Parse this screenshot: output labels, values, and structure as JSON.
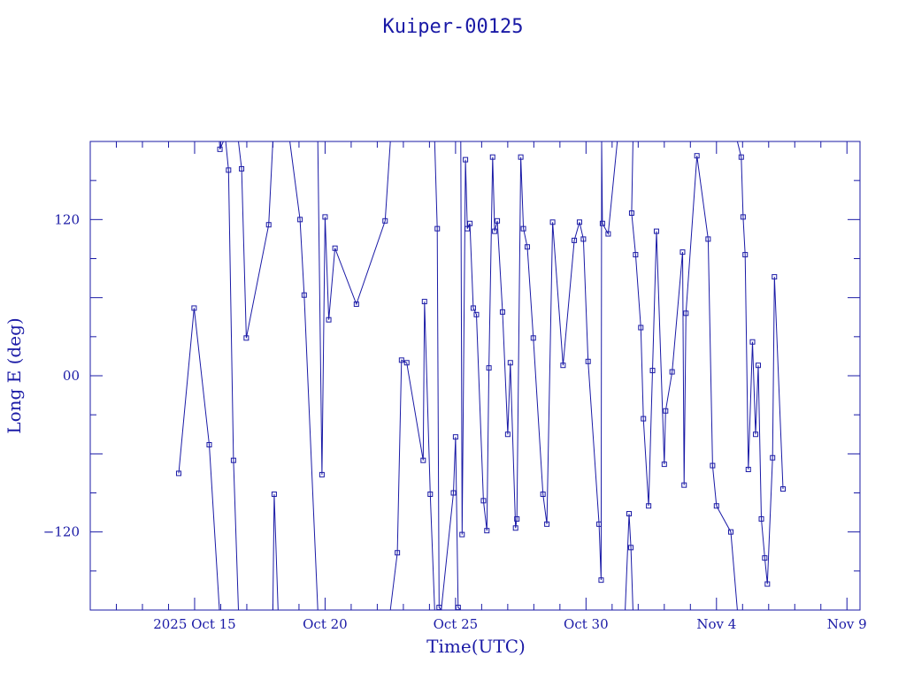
{
  "chart_data": {
    "type": "line",
    "title": "Kuiper-00125",
    "xlabel": "Time(UTC)",
    "ylabel": "Long E (deg)",
    "xlim": [
      11.0,
      40.5
    ],
    "ylim": [
      -180,
      180
    ],
    "x_ticks": [
      {
        "x": 15,
        "label": "2025 Oct 15"
      },
      {
        "x": 20,
        "label": "Oct 20"
      },
      {
        "x": 25,
        "label": "Oct 25"
      },
      {
        "x": 30,
        "label": "Oct 30"
      },
      {
        "x": 35,
        "label": "Nov  4"
      },
      {
        "x": 40,
        "label": "Nov  9"
      }
    ],
    "y_ticks": [
      {
        "y": 120,
        "label": "120"
      },
      {
        "y": 0,
        "label": "00"
      },
      {
        "y": -120,
        "label": "−120"
      }
    ],
    "marker": "square",
    "series": [
      {
        "points": [
          [
            14.39,
            -75
          ],
          [
            14.98,
            52
          ],
          [
            15.56,
            -53
          ],
          [
            15.95,
            -180
          ],
          [
            null,
            null
          ],
          [
            15.95,
            180
          ],
          [
            15.97,
            174
          ],
          [
            16.1,
            180
          ],
          [
            null,
            null
          ],
          [
            16.19,
            180
          ],
          [
            16.3,
            158
          ],
          [
            16.49,
            -65
          ],
          [
            16.68,
            -180
          ],
          [
            null,
            null
          ],
          [
            16.68,
            180
          ],
          [
            16.8,
            159
          ],
          [
            16.98,
            29
          ],
          [
            17.84,
            116
          ],
          [
            18.0,
            180
          ],
          [
            null,
            null
          ],
          [
            18.0,
            -180
          ],
          [
            18.05,
            -91
          ],
          [
            18.2,
            -180
          ],
          [
            null,
            null
          ],
          [
            18.65,
            180
          ],
          [
            19.04,
            120
          ],
          [
            19.2,
            62
          ],
          [
            19.72,
            -180
          ],
          [
            null,
            null
          ],
          [
            19.72,
            180
          ],
          [
            19.88,
            -76
          ],
          [
            20.0,
            122
          ],
          [
            20.14,
            43
          ],
          [
            20.38,
            98
          ],
          [
            21.2,
            55
          ],
          [
            22.3,
            119
          ],
          [
            22.5,
            180
          ],
          [
            null,
            null
          ],
          [
            22.5,
            -180
          ],
          [
            22.77,
            -136
          ],
          [
            22.93,
            12
          ],
          [
            23.13,
            10
          ],
          [
            23.76,
            -65
          ],
          [
            23.81,
            57
          ],
          [
            24.03,
            -91
          ],
          [
            24.2,
            -180
          ],
          [
            null,
            null
          ],
          [
            24.2,
            180
          ],
          [
            24.3,
            113
          ],
          [
            24.37,
            -178
          ],
          [
            24.45,
            -180
          ],
          [
            null,
            null
          ],
          [
            24.45,
            -180
          ],
          [
            24.92,
            -90
          ],
          [
            25.0,
            -47
          ],
          [
            25.1,
            -178
          ],
          [
            25.2,
            -180
          ],
          [
            null,
            null
          ],
          [
            25.2,
            180
          ],
          [
            25.25,
            -122
          ],
          [
            25.38,
            166
          ],
          [
            25.45,
            113
          ],
          [
            25.55,
            117
          ],
          [
            25.68,
            52
          ],
          [
            25.8,
            47
          ],
          [
            26.07,
            -96
          ],
          [
            26.2,
            -119
          ],
          [
            26.28,
            6
          ],
          [
            26.42,
            168
          ],
          [
            26.5,
            111
          ],
          [
            26.6,
            119
          ],
          [
            26.8,
            49
          ],
          [
            27.0,
            -45
          ],
          [
            27.1,
            10
          ],
          [
            27.3,
            -117
          ],
          [
            27.35,
            -110
          ],
          [
            27.5,
            168
          ],
          [
            27.6,
            113
          ],
          [
            27.75,
            99
          ],
          [
            27.98,
            29
          ],
          [
            28.35,
            -91
          ],
          [
            28.5,
            -114
          ],
          [
            28.72,
            118
          ],
          [
            29.12,
            8
          ],
          [
            29.55,
            104
          ],
          [
            29.75,
            118
          ],
          [
            29.9,
            105
          ],
          [
            30.08,
            11
          ],
          [
            30.5,
            -114
          ],
          [
            30.58,
            -157
          ],
          [
            30.6,
            180
          ],
          [
            null,
            null
          ],
          [
            30.6,
            180
          ],
          [
            30.63,
            117
          ],
          [
            30.85,
            109
          ],
          [
            31.2,
            180
          ],
          [
            null,
            null
          ],
          [
            31.5,
            -180
          ],
          [
            31.65,
            -106
          ],
          [
            31.72,
            -132
          ],
          [
            31.8,
            -180
          ],
          [
            null,
            null
          ],
          [
            31.8,
            180
          ],
          [
            31.75,
            125
          ],
          [
            31.9,
            93
          ],
          [
            32.1,
            37
          ],
          [
            32.2,
            -33
          ],
          [
            32.4,
            -100
          ],
          [
            32.55,
            4
          ],
          [
            32.7,
            111
          ],
          [
            33.0,
            -68
          ],
          [
            33.05,
            -27
          ],
          [
            33.3,
            3
          ],
          [
            33.7,
            95
          ],
          [
            33.76,
            -84
          ],
          [
            33.83,
            48
          ],
          [
            34.25,
            169
          ],
          [
            34.68,
            105
          ],
          [
            34.85,
            -69
          ],
          [
            35.0,
            -100
          ],
          [
            35.55,
            -120
          ],
          [
            35.8,
            -180
          ],
          [
            null,
            null
          ],
          [
            35.8,
            180
          ],
          [
            35.95,
            168
          ],
          [
            36.02,
            122
          ],
          [
            36.1,
            93
          ],
          [
            36.22,
            -72
          ],
          [
            36.38,
            26
          ],
          [
            36.5,
            -45
          ],
          [
            36.6,
            8
          ],
          [
            36.72,
            -110
          ],
          [
            36.85,
            -140
          ],
          [
            36.95,
            -160
          ],
          [
            37.15,
            -63
          ],
          [
            37.22,
            76
          ],
          [
            37.55,
            -87
          ]
        ]
      }
    ],
    "colors": {
      "foreground": "#1a1aa6",
      "background": "#ffffff"
    }
  }
}
